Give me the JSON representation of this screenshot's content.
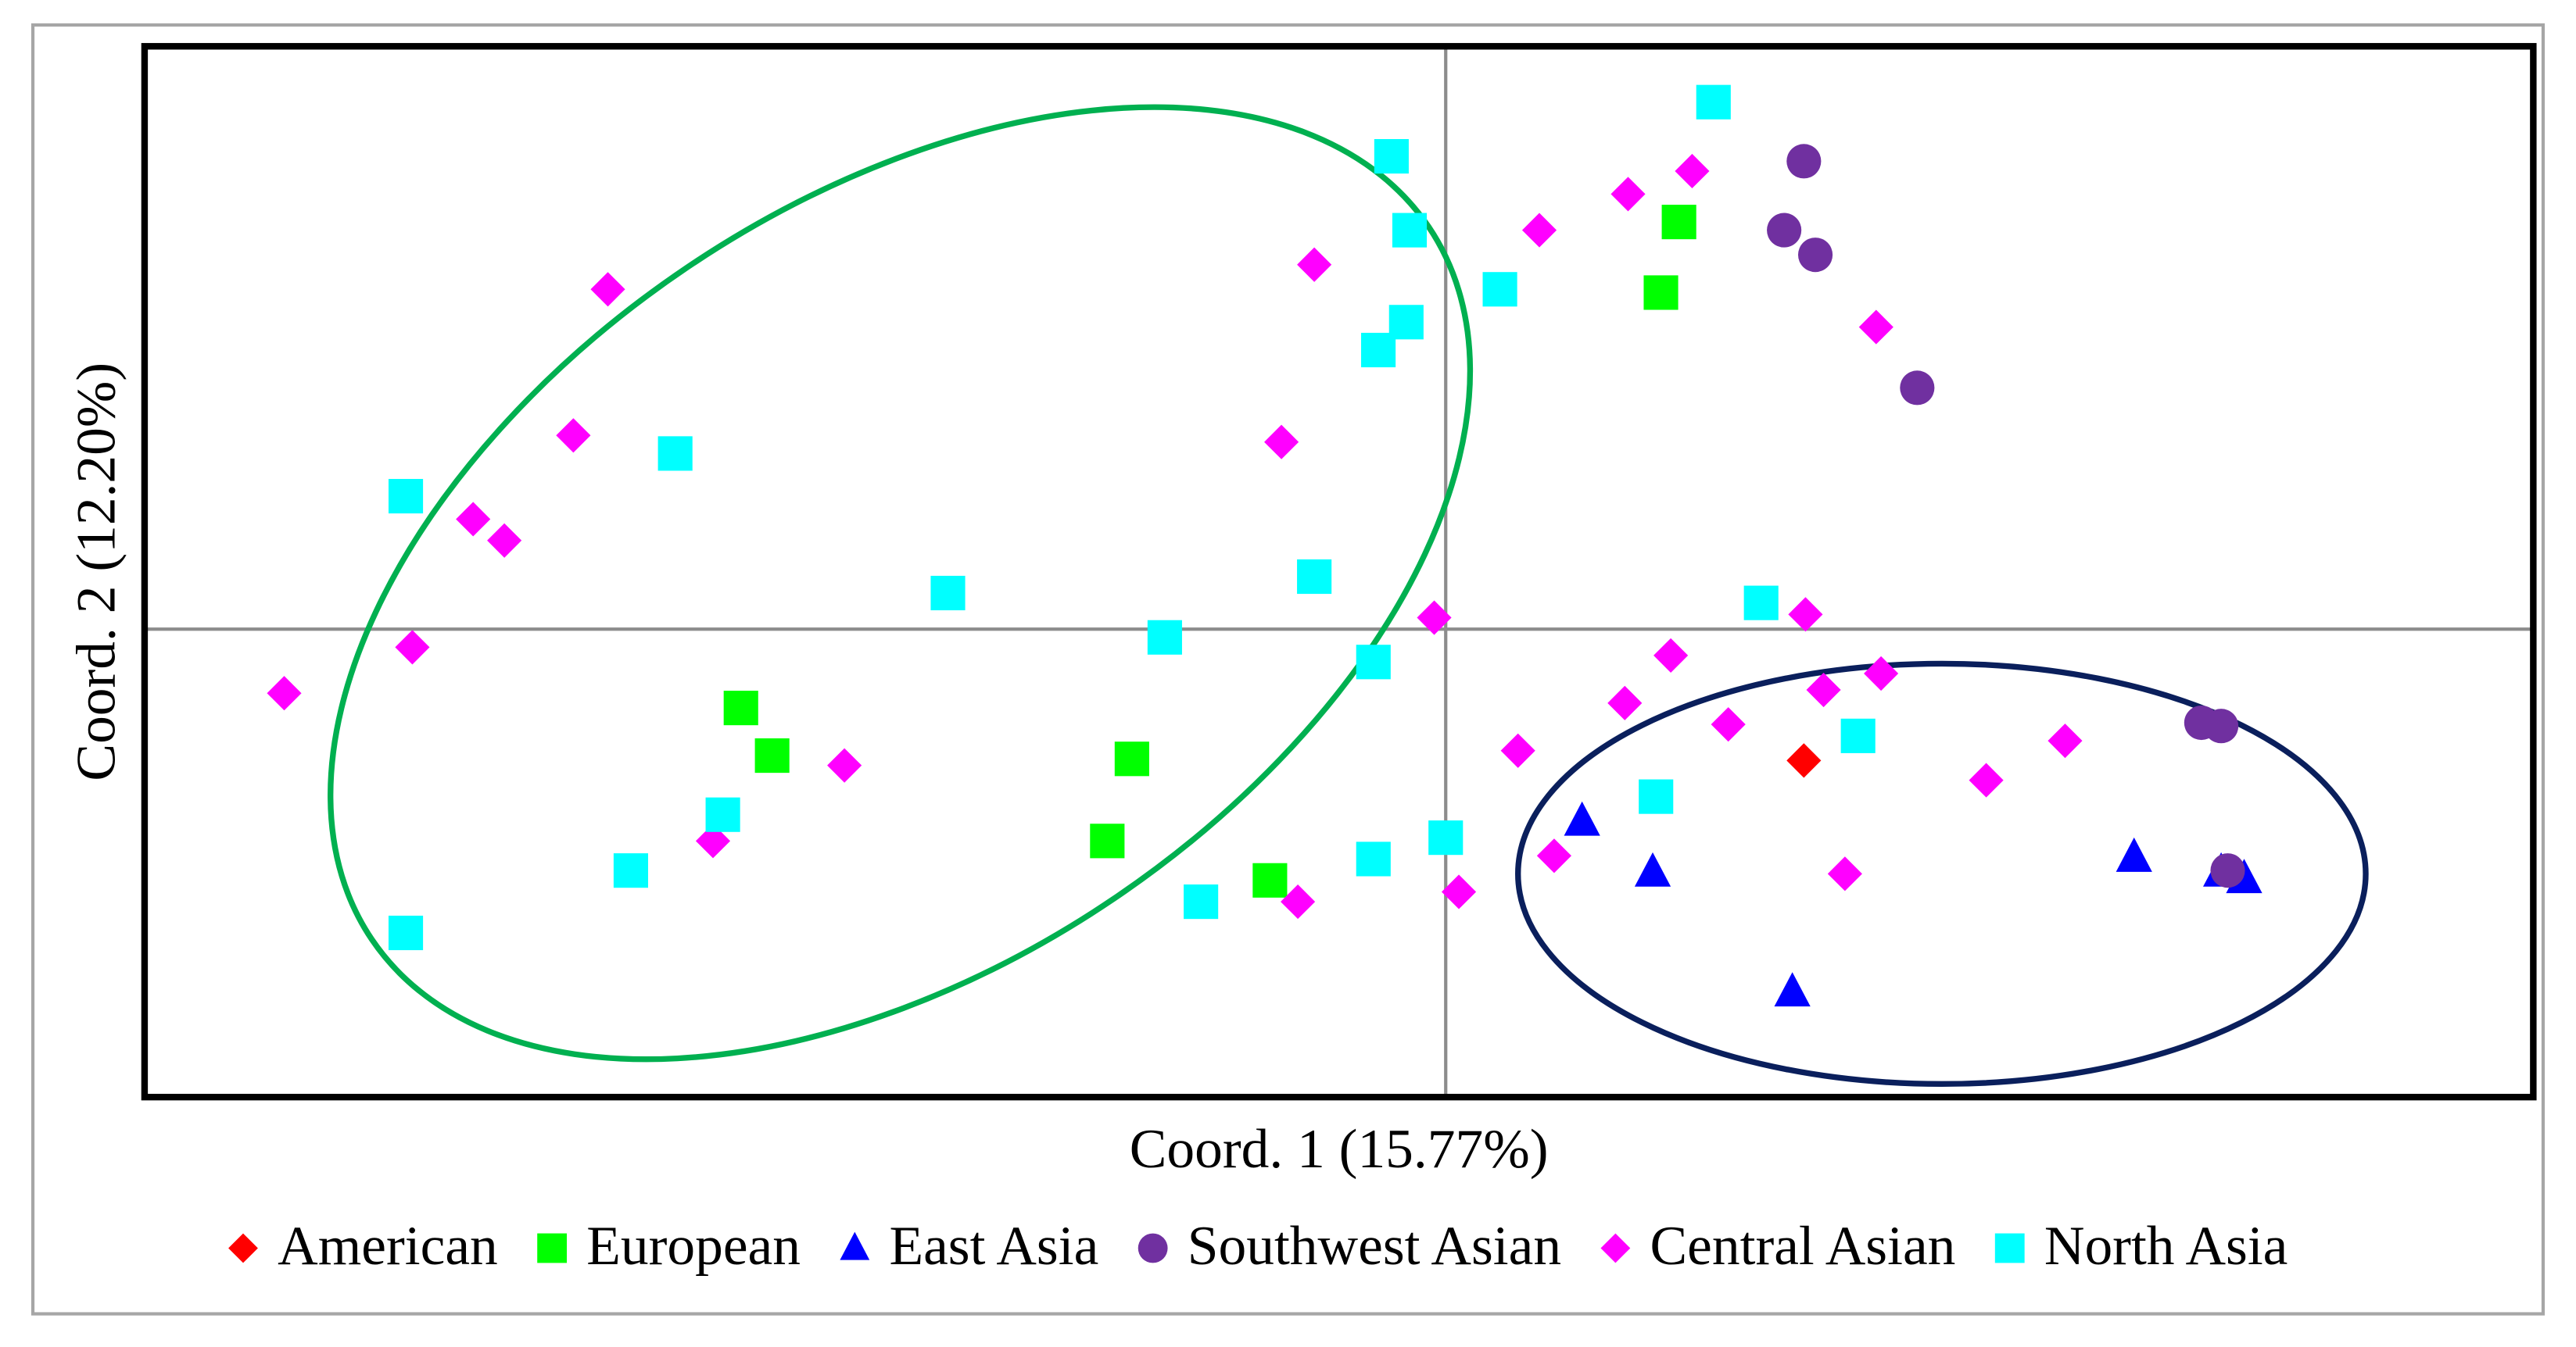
{
  "chart_data": {
    "type": "scatter",
    "xlabel": "Coord. 1 (15.77%)",
    "ylabel": "Coord. 2 (12.20%)",
    "xlim": [
      -7.92,
      6.62
    ],
    "ylim": [
      -2.85,
      3.55
    ],
    "xticks": [
      0
    ],
    "yticks": [
      0
    ],
    "tick_labels": false,
    "grid": true,
    "legend": "bottom",
    "series": [
      {
        "name": "American",
        "color": "#ff0000",
        "marker": "diamond",
        "x": [
          2.18
        ],
        "y": [
          -0.8
        ]
      },
      {
        "name": "European",
        "color": "#00ff00",
        "marker": "square",
        "x": [
          1.42,
          1.31,
          -4.29,
          -4.1,
          -1.91,
          -2.06,
          -1.07
        ],
        "y": [
          2.48,
          2.05,
          -0.48,
          -0.77,
          -0.79,
          -1.29,
          -1.53
        ]
      },
      {
        "name": "East Asia",
        "color": "#0000ff",
        "marker": "triangle",
        "x": [
          0.83,
          1.26,
          2.11,
          4.19,
          4.72,
          4.86
        ],
        "y": [
          -1.17,
          -1.48,
          -2.21,
          -1.39,
          -1.48,
          -1.52
        ]
      },
      {
        "name": "Southwest Asian",
        "color": "#7030a0",
        "marker": "circle",
        "x": [
          2.18,
          2.06,
          2.25,
          2.87,
          4.6,
          4.72,
          4.76
        ],
        "y": [
          2.85,
          2.43,
          2.28,
          1.47,
          -0.57,
          -0.59,
          -1.47
        ]
      },
      {
        "name": "Central Asian",
        "color": "#ff00ff",
        "marker": "diamond",
        "x": [
          -5.1,
          -5.31,
          -5.92,
          -5.73,
          -6.29,
          -7.07,
          -4.46,
          -3.66,
          -0.8,
          -1.0,
          -0.07,
          0.57,
          1.11,
          1.5,
          2.62,
          2.19,
          1.37,
          1.09,
          1.72,
          2.3,
          2.65,
          0.44,
          0.66,
          0.08,
          -0.9,
          2.43,
          3.29,
          3.77
        ],
        "y": [
          2.07,
          1.18,
          0.67,
          0.54,
          -0.11,
          -0.39,
          -1.29,
          -0.83,
          2.22,
          1.14,
          0.07,
          2.43,
          2.65,
          2.79,
          1.84,
          0.09,
          -0.16,
          -0.45,
          -0.58,
          -0.37,
          -0.27,
          -0.74,
          -1.38,
          -1.6,
          -1.66,
          -1.49,
          -0.92,
          -0.68
        ]
      },
      {
        "name": "North Asia",
        "color": "#00ffff",
        "marker": "square",
        "x": [
          1.63,
          -0.33,
          -0.22,
          0.33,
          -0.24,
          -0.41,
          -4.69,
          -6.33,
          -3.03,
          -0.8,
          -1.71,
          -0.44,
          1.92,
          2.51,
          1.28,
          0.0,
          -0.44,
          -1.49,
          -4.4,
          -4.96,
          -6.33
        ],
        "y": [
          3.21,
          2.88,
          2.43,
          2.07,
          1.87,
          1.7,
          1.07,
          0.81,
          0.22,
          0.32,
          -0.05,
          -0.2,
          0.16,
          -0.65,
          -1.02,
          -1.27,
          -1.4,
          -1.66,
          -1.13,
          -1.47,
          -1.85
        ]
      }
    ]
  }
}
